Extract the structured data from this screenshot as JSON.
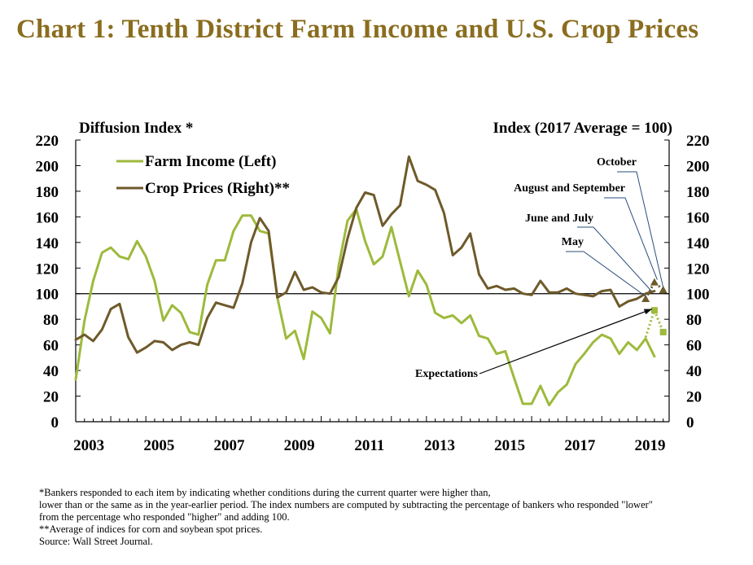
{
  "title": "Chart 1: Tenth District Farm Income and U.S. Crop Prices",
  "footnotes": [
    "*Bankers responded to each item by indicating whether conditions during the current quarter were higher than,",
    "lower than or the same as in the year-earlier period.  The index numbers are computed by subtracting the percentage of bankers who responded \"lower\"",
    "from the percentage who responded \"higher\" and adding 100.",
    "**Average of indices for corn and soybean spot prices.",
    "Source: Wall Street Journal."
  ],
  "colors": {
    "title": "#8a6d1f",
    "farm_income": "#9dba3c",
    "crop_prices": "#6e5a2a"
  },
  "chart_data": {
    "type": "line",
    "left_axis_title": "Diffusion Index *",
    "right_axis_title": "Index (2017 Average = 100)",
    "ylim": [
      0,
      220
    ],
    "y_ticks": [
      "0",
      "20",
      "40",
      "60",
      "80",
      "100",
      "120",
      "140",
      "160",
      "180",
      "200",
      "220"
    ],
    "x_ticks": [
      "2003",
      "2005",
      "2007",
      "2009",
      "2011",
      "2013",
      "2015",
      "2017",
      "2019"
    ],
    "x_range": [
      2003.0,
      2019.92
    ],
    "reference_line": 100,
    "legend_position": "top-left",
    "series": [
      {
        "name": "Farm Income (Left)",
        "axis": "left",
        "color": "#9dba3c",
        "x": [
          2003.0,
          2003.25,
          2003.5,
          2003.75,
          2004.0,
          2004.25,
          2004.5,
          2004.75,
          2005.0,
          2005.25,
          2005.5,
          2005.75,
          2006.0,
          2006.25,
          2006.5,
          2006.75,
          2007.0,
          2007.25,
          2007.5,
          2007.75,
          2008.0,
          2008.25,
          2008.5,
          2008.75,
          2009.0,
          2009.25,
          2009.5,
          2009.75,
          2010.0,
          2010.25,
          2010.5,
          2010.75,
          2011.0,
          2011.25,
          2011.5,
          2011.75,
          2012.0,
          2012.25,
          2012.5,
          2012.75,
          2013.0,
          2013.25,
          2013.5,
          2013.75,
          2014.0,
          2014.25,
          2014.5,
          2014.75,
          2015.0,
          2015.25,
          2015.5,
          2015.75,
          2016.0,
          2016.25,
          2016.5,
          2016.75,
          2017.0,
          2017.25,
          2017.5,
          2017.75,
          2018.0,
          2018.25,
          2018.5,
          2018.75,
          2019.0,
          2019.25,
          2019.5
        ],
        "values": [
          33,
          79,
          110,
          132,
          136,
          129,
          127,
          141,
          129,
          110,
          79,
          91,
          85,
          70,
          68,
          107,
          126,
          126,
          149,
          161,
          161,
          149,
          147,
          97,
          65,
          71,
          49,
          86,
          81,
          69,
          122,
          157,
          166,
          141,
          123,
          129,
          152,
          125,
          98,
          118,
          107,
          85,
          81,
          83,
          77,
          83,
          67,
          65,
          53,
          55,
          34,
          14,
          14,
          28,
          13,
          23,
          29,
          45,
          53,
          62,
          68,
          65,
          53,
          62,
          56,
          65,
          51
        ]
      },
      {
        "name": "Crop Prices (Right)**",
        "axis": "right",
        "color": "#6e5a2a",
        "x": [
          2003.0,
          2003.25,
          2003.5,
          2003.75,
          2004.0,
          2004.25,
          2004.5,
          2004.75,
          2005.0,
          2005.25,
          2005.5,
          2005.75,
          2006.0,
          2006.25,
          2006.5,
          2006.75,
          2007.0,
          2007.25,
          2007.5,
          2007.75,
          2008.0,
          2008.25,
          2008.5,
          2008.75,
          2009.0,
          2009.25,
          2009.5,
          2009.75,
          2010.0,
          2010.25,
          2010.5,
          2010.75,
          2011.0,
          2011.25,
          2011.5,
          2011.75,
          2012.0,
          2012.25,
          2012.5,
          2012.75,
          2013.0,
          2013.25,
          2013.5,
          2013.75,
          2014.0,
          2014.25,
          2014.5,
          2014.75,
          2015.0,
          2015.25,
          2015.5,
          2015.75,
          2016.0,
          2016.25,
          2016.5,
          2016.75,
          2017.0,
          2017.25,
          2017.5,
          2017.75,
          2018.0,
          2018.25,
          2018.5,
          2018.75,
          2019.0,
          2019.25,
          2019.5
        ],
        "values": [
          64,
          68,
          63,
          72,
          88,
          92,
          66,
          54,
          58,
          63,
          62,
          56,
          60,
          62,
          60,
          81,
          93,
          91,
          89,
          108,
          140,
          159,
          149,
          97,
          101,
          117,
          103,
          105,
          101,
          100,
          113,
          143,
          167,
          179,
          177,
          153,
          162,
          169,
          207,
          188,
          185,
          181,
          163,
          130,
          136,
          147,
          115,
          104,
          106,
          103,
          104,
          100,
          99,
          110,
          101,
          101,
          104,
          100,
          99,
          98,
          102,
          103,
          90,
          94,
          96,
          100,
          102
        ]
      }
    ],
    "expectations": {
      "label": "Expectations",
      "farm_income": {
        "x": [
          2019.25,
          2019.5,
          2019.75
        ],
        "values": [
          66,
          87,
          70
        ]
      },
      "crop_prices": {
        "x": [
          2019.25,
          2019.5,
          2019.75
        ],
        "values": [
          96,
          109,
          103
        ]
      }
    },
    "annotations": [
      {
        "label": "May",
        "x": 2019.25,
        "y": 96
      },
      {
        "label": "June and July",
        "x": 2019.42,
        "y": 100
      },
      {
        "label": "August and September",
        "x": 2019.58,
        "y": 109
      },
      {
        "label": "October",
        "x": 2019.75,
        "y": 103
      }
    ]
  }
}
